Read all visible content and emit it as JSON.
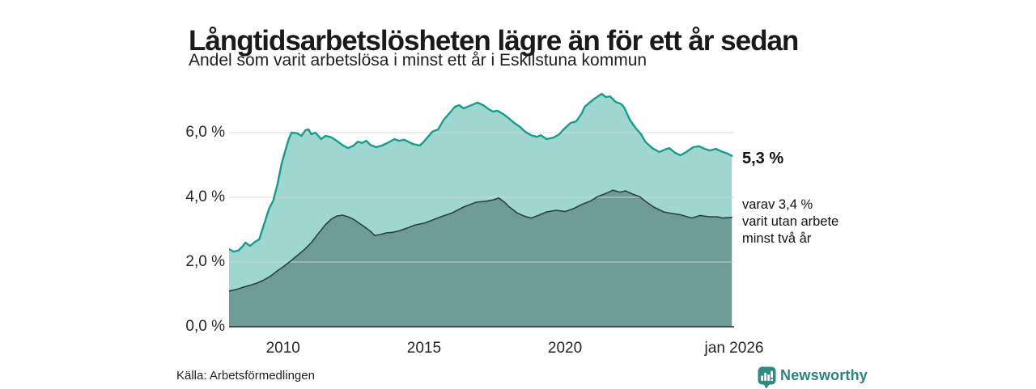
{
  "header": {
    "title": "Långtidsarbetslösheten lägre än för ett år sedan",
    "subtitle": "Andel som varit arbetslösa i minst ett år i Eskilstuna kommun"
  },
  "annotations": {
    "latest": "5,3 %",
    "secondary_lines": [
      "varav 3,4 %",
      "varit utan arbete",
      "minst två år"
    ]
  },
  "footer": {
    "source": "Källa: Arbetsförmedlingen",
    "brand": "Newsworthy"
  },
  "chart_data": {
    "type": "area",
    "title": "Långtidsarbetslösheten lägre än för ett år sedan",
    "subtitle": "Andel som varit arbetslösa i minst ett år i Eskilstuna kommun",
    "unit": "percent of workforce",
    "region": "Eskilstuna kommun",
    "legend_position": "right-edge annotations",
    "grid": true,
    "x_axis": {
      "min": 2008.083,
      "max": 2026.0,
      "ticks": [
        {
          "value": 2010,
          "label": "2010"
        },
        {
          "value": 2015,
          "label": "2015"
        },
        {
          "value": 2020,
          "label": "2020"
        },
        {
          "value": 2026,
          "label": "jan 2026"
        }
      ]
    },
    "y_axis": {
      "min": 0,
      "max": 7.6,
      "gridlines": [
        2,
        4,
        6
      ],
      "ticks": [
        {
          "value": 0,
          "label": "0,0 %"
        },
        {
          "value": 2,
          "label": "2,0 %"
        },
        {
          "value": 4,
          "label": "4,0 %"
        },
        {
          "value": 6,
          "label": "6,0 %"
        }
      ]
    },
    "colors": {
      "line1": "#189c8f",
      "fill1": "#9fd6cf",
      "line2": "#2a423f",
      "fill2": "#6f9b96",
      "grid": "#d9d9d9",
      "baseline": "#262626",
      "accent_brand": "#2e837c"
    },
    "series": [
      {
        "name": "Arbetslösa minst ett år",
        "latest_value": 5.3,
        "points": [
          [
            2008.08,
            2.4
          ],
          [
            2008.25,
            2.32
          ],
          [
            2008.42,
            2.36
          ],
          [
            2008.58,
            2.5
          ],
          [
            2008.66,
            2.6
          ],
          [
            2008.83,
            2.5
          ],
          [
            2009.0,
            2.62
          ],
          [
            2009.15,
            2.7
          ],
          [
            2009.3,
            3.1
          ],
          [
            2009.5,
            3.65
          ],
          [
            2009.65,
            3.9
          ],
          [
            2009.8,
            4.4
          ],
          [
            2009.95,
            5.05
          ],
          [
            2010.1,
            5.5
          ],
          [
            2010.2,
            5.8
          ],
          [
            2010.3,
            6.0
          ],
          [
            2010.5,
            5.98
          ],
          [
            2010.65,
            5.9
          ],
          [
            2010.8,
            6.08
          ],
          [
            2010.9,
            6.1
          ],
          [
            2011.0,
            5.95
          ],
          [
            2011.15,
            6.0
          ],
          [
            2011.35,
            5.8
          ],
          [
            2011.5,
            5.9
          ],
          [
            2011.7,
            5.86
          ],
          [
            2011.9,
            5.75
          ],
          [
            2012.1,
            5.62
          ],
          [
            2012.3,
            5.52
          ],
          [
            2012.5,
            5.6
          ],
          [
            2012.65,
            5.72
          ],
          [
            2012.8,
            5.68
          ],
          [
            2012.95,
            5.75
          ],
          [
            2013.1,
            5.62
          ],
          [
            2013.3,
            5.55
          ],
          [
            2013.5,
            5.6
          ],
          [
            2013.7,
            5.68
          ],
          [
            2013.95,
            5.8
          ],
          [
            2014.1,
            5.75
          ],
          [
            2014.3,
            5.78
          ],
          [
            2014.6,
            5.65
          ],
          [
            2014.85,
            5.6
          ],
          [
            2015.0,
            5.73
          ],
          [
            2015.3,
            6.03
          ],
          [
            2015.5,
            6.1
          ],
          [
            2015.7,
            6.4
          ],
          [
            2015.9,
            6.6
          ],
          [
            2016.1,
            6.8
          ],
          [
            2016.25,
            6.85
          ],
          [
            2016.4,
            6.75
          ],
          [
            2016.6,
            6.82
          ],
          [
            2016.9,
            6.93
          ],
          [
            2017.1,
            6.85
          ],
          [
            2017.3,
            6.72
          ],
          [
            2017.45,
            6.65
          ],
          [
            2017.6,
            6.68
          ],
          [
            2017.8,
            6.58
          ],
          [
            2018.0,
            6.45
          ],
          [
            2018.2,
            6.3
          ],
          [
            2018.4,
            6.18
          ],
          [
            2018.6,
            6.02
          ],
          [
            2018.8,
            5.92
          ],
          [
            2019.0,
            5.87
          ],
          [
            2019.15,
            5.92
          ],
          [
            2019.35,
            5.8
          ],
          [
            2019.6,
            5.85
          ],
          [
            2019.8,
            5.95
          ],
          [
            2019.95,
            6.1
          ],
          [
            2020.2,
            6.3
          ],
          [
            2020.4,
            6.35
          ],
          [
            2020.6,
            6.6
          ],
          [
            2020.7,
            6.8
          ],
          [
            2020.9,
            6.95
          ],
          [
            2021.05,
            7.05
          ],
          [
            2021.3,
            7.2
          ],
          [
            2021.45,
            7.1
          ],
          [
            2021.6,
            7.12
          ],
          [
            2021.8,
            6.95
          ],
          [
            2022.0,
            6.88
          ],
          [
            2022.1,
            6.78
          ],
          [
            2022.3,
            6.4
          ],
          [
            2022.5,
            6.15
          ],
          [
            2022.7,
            5.95
          ],
          [
            2022.85,
            5.72
          ],
          [
            2023.1,
            5.52
          ],
          [
            2023.35,
            5.4
          ],
          [
            2023.55,
            5.48
          ],
          [
            2023.7,
            5.52
          ],
          [
            2023.9,
            5.38
          ],
          [
            2024.1,
            5.3
          ],
          [
            2024.3,
            5.4
          ],
          [
            2024.55,
            5.55
          ],
          [
            2024.75,
            5.58
          ],
          [
            2024.95,
            5.5
          ],
          [
            2025.15,
            5.45
          ],
          [
            2025.35,
            5.5
          ],
          [
            2025.55,
            5.42
          ],
          [
            2025.75,
            5.36
          ],
          [
            2025.92,
            5.28
          ]
        ]
      },
      {
        "name": "varav utan arbete minst två år",
        "latest_value": 3.4,
        "points": [
          [
            2008.08,
            1.1
          ],
          [
            2008.33,
            1.15
          ],
          [
            2008.58,
            1.22
          ],
          [
            2008.83,
            1.28
          ],
          [
            2009.08,
            1.35
          ],
          [
            2009.33,
            1.45
          ],
          [
            2009.58,
            1.58
          ],
          [
            2009.83,
            1.75
          ],
          [
            2010.0,
            1.85
          ],
          [
            2010.25,
            2.02
          ],
          [
            2010.5,
            2.2
          ],
          [
            2010.75,
            2.38
          ],
          [
            2011.0,
            2.6
          ],
          [
            2011.25,
            2.88
          ],
          [
            2011.5,
            3.15
          ],
          [
            2011.7,
            3.32
          ],
          [
            2011.9,
            3.42
          ],
          [
            2012.1,
            3.45
          ],
          [
            2012.3,
            3.4
          ],
          [
            2012.5,
            3.32
          ],
          [
            2012.7,
            3.2
          ],
          [
            2012.9,
            3.08
          ],
          [
            2013.1,
            2.95
          ],
          [
            2013.25,
            2.82
          ],
          [
            2013.45,
            2.85
          ],
          [
            2013.65,
            2.9
          ],
          [
            2013.9,
            2.92
          ],
          [
            2014.1,
            2.96
          ],
          [
            2014.4,
            3.05
          ],
          [
            2014.7,
            3.15
          ],
          [
            2015.0,
            3.2
          ],
          [
            2015.25,
            3.28
          ],
          [
            2015.6,
            3.4
          ],
          [
            2016.0,
            3.52
          ],
          [
            2016.4,
            3.7
          ],
          [
            2016.85,
            3.85
          ],
          [
            2017.2,
            3.88
          ],
          [
            2017.45,
            3.92
          ],
          [
            2017.65,
            3.98
          ],
          [
            2017.85,
            3.85
          ],
          [
            2018.0,
            3.72
          ],
          [
            2018.3,
            3.52
          ],
          [
            2018.55,
            3.42
          ],
          [
            2018.8,
            3.36
          ],
          [
            2019.05,
            3.44
          ],
          [
            2019.35,
            3.55
          ],
          [
            2019.7,
            3.6
          ],
          [
            2020.0,
            3.56
          ],
          [
            2020.3,
            3.65
          ],
          [
            2020.6,
            3.78
          ],
          [
            2020.9,
            3.88
          ],
          [
            2021.15,
            4.02
          ],
          [
            2021.45,
            4.12
          ],
          [
            2021.7,
            4.22
          ],
          [
            2021.95,
            4.16
          ],
          [
            2022.15,
            4.2
          ],
          [
            2022.4,
            4.1
          ],
          [
            2022.65,
            4.02
          ],
          [
            2022.9,
            3.85
          ],
          [
            2023.15,
            3.7
          ],
          [
            2023.5,
            3.55
          ],
          [
            2023.8,
            3.5
          ],
          [
            2024.1,
            3.46
          ],
          [
            2024.5,
            3.36
          ],
          [
            2024.8,
            3.44
          ],
          [
            2025.1,
            3.4
          ],
          [
            2025.4,
            3.4
          ],
          [
            2025.6,
            3.36
          ],
          [
            2025.92,
            3.38
          ]
        ]
      }
    ]
  }
}
